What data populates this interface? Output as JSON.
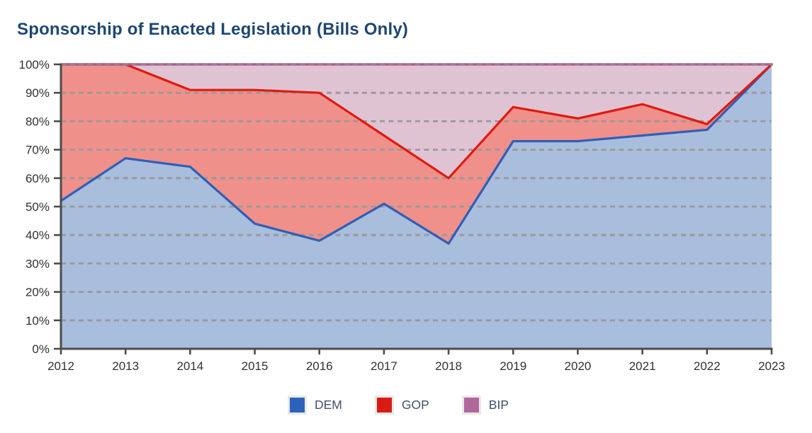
{
  "title": "Sponsorship of Enacted Legislation (Bills Only)",
  "chart_data": {
    "type": "area",
    "stacked": true,
    "title": "Sponsorship of Enacted Legislation (Bills Only)",
    "x": [
      "2012",
      "2013",
      "2014",
      "2015",
      "2016",
      "2017",
      "2018",
      "2019",
      "2020",
      "2021",
      "2022",
      "2023"
    ],
    "series": [
      {
        "name": "DEM",
        "values": [
          52,
          67,
          64,
          44,
          38,
          51,
          37,
          73,
          73,
          75,
          77,
          100
        ],
        "line_color": "#2e5fb7",
        "fill_color": "#a9bddd"
      },
      {
        "name": "GOP",
        "values": [
          48,
          33,
          27,
          47,
          52,
          24,
          23,
          12,
          8,
          11,
          2,
          0
        ],
        "line_color": "#e01a0f",
        "fill_color": "#f0908a"
      },
      {
        "name": "BIP",
        "values": [
          0,
          0,
          9,
          9,
          10,
          25,
          40,
          15,
          19,
          14,
          21,
          0
        ],
        "line_color": "#a6608e",
        "fill_color": "#e0c3d3"
      }
    ],
    "xlabel": "",
    "ylabel": "",
    "ylim": [
      0,
      100
    ],
    "y_ticks": [
      "0%",
      "10%",
      "20%",
      "30%",
      "40%",
      "50%",
      "60%",
      "70%",
      "80%",
      "90%",
      "100%"
    ],
    "grid": "horizontal-dashed",
    "legend_position": "bottom"
  },
  "legend": {
    "items": [
      {
        "label": "DEM",
        "color": "#2c63ba"
      },
      {
        "label": "GOP",
        "color": "#d91c11"
      },
      {
        "label": "BIP",
        "color": "#b2679b"
      }
    ]
  },
  "colors": {
    "title": "#1e476f",
    "axis": "#4c4c4c",
    "tick_label": "#313131",
    "grid": "#999999",
    "legend_text": "#445069",
    "background": "#ffffff"
  }
}
